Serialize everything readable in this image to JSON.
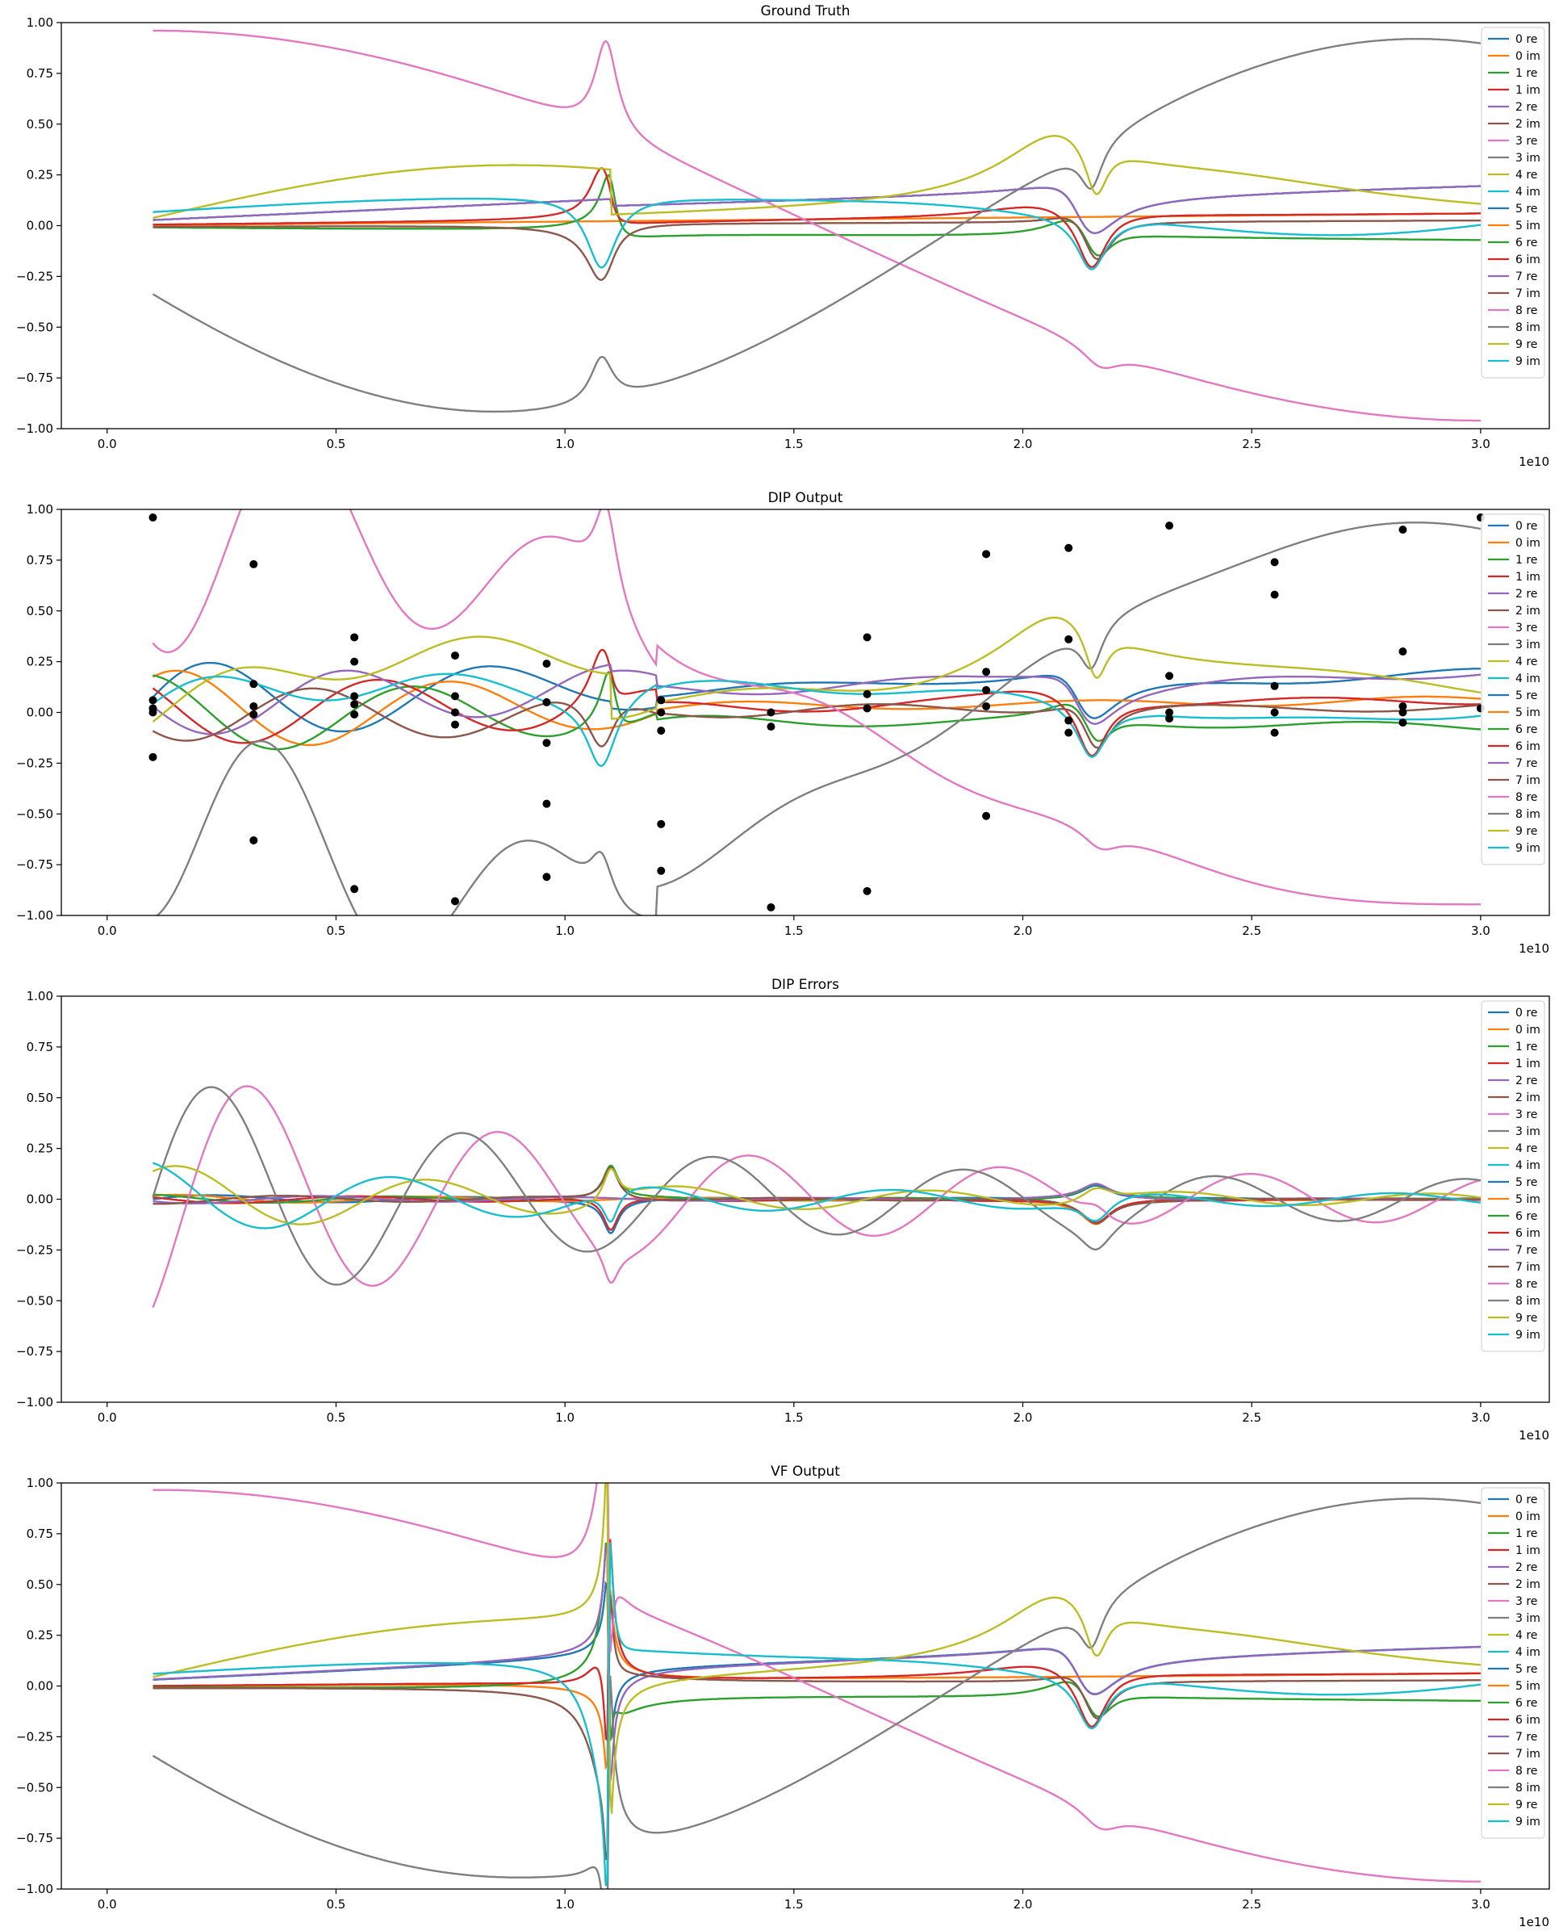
{
  "figure": {
    "subplot_count": 4,
    "legend_location": "upper right",
    "series_legend": [
      "0 re",
      "0 im",
      "1 re",
      "1 im",
      "2 re",
      "2 im",
      "3 re",
      "3 im",
      "4 re",
      "4 im",
      "5 re",
      "5 im",
      "6 re",
      "6 im",
      "7 re",
      "7 im",
      "8 re",
      "8 im",
      "9 re",
      "9 im"
    ],
    "series_colors": [
      "#1f77b4",
      "#ff7f0e",
      "#2ca02c",
      "#d62728",
      "#9467bd",
      "#8c564b",
      "#e377c2",
      "#7f7f7f",
      "#bcbd22",
      "#17becf",
      "#1f77b4",
      "#ff7f0e",
      "#2ca02c",
      "#d62728",
      "#9467bd",
      "#8c564b",
      "#e377c2",
      "#7f7f7f",
      "#bcbd22",
      "#17becf"
    ],
    "axis_color": "#000000",
    "marker_color": "#000000"
  },
  "chart_data": [
    {
      "type": "line",
      "title": "Ground Truth",
      "x_offset_label": "1e10",
      "xlim": [
        -0.1,
        3.15
      ],
      "ylim": [
        -1.0,
        1.0
      ],
      "xticks": [
        "0.0",
        "0.5",
        "1.0",
        "1.5",
        "2.0",
        "2.5",
        "3.0"
      ],
      "yticks": [
        "−1.00",
        "−0.75",
        "−0.50",
        "−0.25",
        "0.00",
        "0.25",
        "0.50",
        "0.75",
        "1.00"
      ],
      "series_style": "ground_truth",
      "markers": []
    },
    {
      "type": "line",
      "title": "DIP Output",
      "x_offset_label": "1e10",
      "xlim": [
        -0.1,
        3.15
      ],
      "ylim": [
        -1.0,
        1.0
      ],
      "xticks": [
        "0.0",
        "0.5",
        "1.0",
        "1.5",
        "2.0",
        "2.5",
        "3.0"
      ],
      "yticks": [
        "−1.00",
        "−0.75",
        "−0.50",
        "−0.25",
        "0.00",
        "0.25",
        "0.50",
        "0.75",
        "1.00"
      ],
      "series_style": "dip_output",
      "markers": [
        [
          0.1,
          0.96
        ],
        [
          0.1,
          -0.22
        ],
        [
          0.1,
          0.06
        ],
        [
          0.1,
          0.02
        ],
        [
          0.1,
          0.0
        ],
        [
          0.32,
          0.73
        ],
        [
          0.32,
          -0.63
        ],
        [
          0.32,
          0.14
        ],
        [
          0.32,
          0.03
        ],
        [
          0.32,
          -0.01
        ],
        [
          0.54,
          0.37
        ],
        [
          0.54,
          -0.87
        ],
        [
          0.54,
          0.25
        ],
        [
          0.54,
          0.08
        ],
        [
          0.54,
          0.04
        ],
        [
          0.54,
          -0.01
        ],
        [
          0.76,
          -0.93
        ],
        [
          0.76,
          0.28
        ],
        [
          0.76,
          0.08
        ],
        [
          0.76,
          -0.06
        ],
        [
          0.76,
          0.0
        ],
        [
          0.96,
          -0.45
        ],
        [
          0.96,
          -0.81
        ],
        [
          0.96,
          0.24
        ],
        [
          0.96,
          -0.15
        ],
        [
          0.96,
          0.05
        ],
        [
          1.21,
          -0.78
        ],
        [
          1.21,
          -0.55
        ],
        [
          1.21,
          0.06
        ],
        [
          1.21,
          -0.09
        ],
        [
          1.21,
          0.0
        ],
        [
          1.45,
          -0.96
        ],
        [
          1.45,
          -0.07
        ],
        [
          1.45,
          0.0
        ],
        [
          1.66,
          -0.88
        ],
        [
          1.66,
          0.37
        ],
        [
          1.66,
          0.09
        ],
        [
          1.66,
          0.02
        ],
        [
          1.92,
          -0.51
        ],
        [
          1.92,
          0.78
        ],
        [
          1.92,
          0.2
        ],
        [
          1.92,
          0.11
        ],
        [
          1.92,
          0.03
        ],
        [
          2.1,
          0.81
        ],
        [
          2.1,
          0.36
        ],
        [
          2.1,
          -0.04
        ],
        [
          2.1,
          -0.1
        ],
        [
          2.32,
          0.92
        ],
        [
          2.32,
          0.18
        ],
        [
          2.32,
          -0.03
        ],
        [
          2.32,
          0.0
        ],
        [
          2.55,
          0.58
        ],
        [
          2.55,
          0.74
        ],
        [
          2.55,
          0.13
        ],
        [
          2.55,
          -0.1
        ],
        [
          2.55,
          0.0
        ],
        [
          2.83,
          0.9
        ],
        [
          2.83,
          0.3
        ],
        [
          2.83,
          0.03
        ],
        [
          2.83,
          -0.05
        ],
        [
          2.83,
          0.0
        ],
        [
          3.0,
          0.96
        ],
        [
          3.0,
          0.02
        ]
      ]
    },
    {
      "type": "line",
      "title": "DIP Errors",
      "x_offset_label": "1e10",
      "xlim": [
        -0.1,
        3.15
      ],
      "ylim": [
        -1.0,
        1.0
      ],
      "xticks": [
        "0.0",
        "0.5",
        "1.0",
        "1.5",
        "2.0",
        "2.5",
        "3.0"
      ],
      "yticks": [
        "−1.00",
        "−0.75",
        "−0.50",
        "−0.25",
        "0.00",
        "0.25",
        "0.50",
        "0.75",
        "1.00"
      ],
      "series_style": "dip_errors",
      "markers": []
    },
    {
      "type": "line",
      "title": "VF Output",
      "x_offset_label": "1e10",
      "xlim": [
        -0.1,
        3.15
      ],
      "ylim": [
        -1.0,
        1.0
      ],
      "xticks": [
        "0.0",
        "0.5",
        "1.0",
        "1.5",
        "2.0",
        "2.5",
        "3.0"
      ],
      "yticks": [
        "−1.00",
        "−0.75",
        "−0.50",
        "−0.25",
        "0.00",
        "0.25",
        "0.50",
        "0.75",
        "1.00"
      ],
      "series_style": "vf_output",
      "markers": []
    }
  ]
}
